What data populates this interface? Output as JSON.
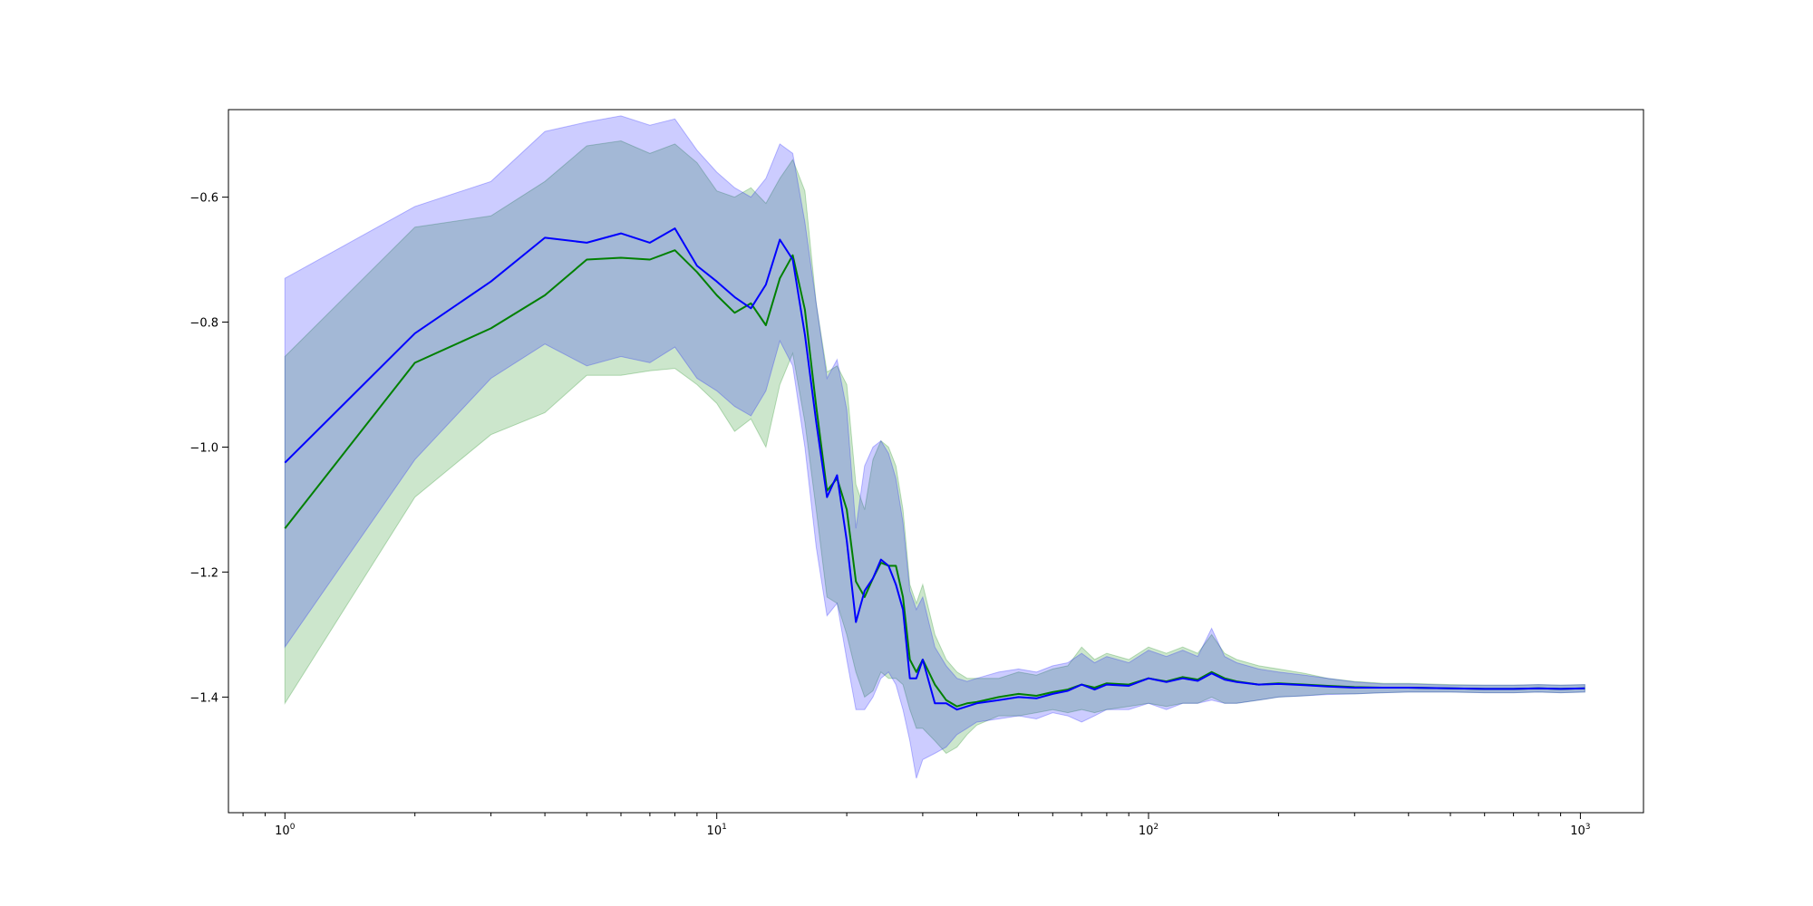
{
  "chart_data": {
    "type": "line",
    "title": "",
    "xlabel": "",
    "ylabel": "",
    "xscale": "log",
    "xlim": [
      0.74,
      1400
    ],
    "ylim": [
      -1.585,
      -0.46
    ],
    "grid": false,
    "legend": "none",
    "x_tick_labels": [
      {
        "value": 1,
        "base": "10",
        "exp": "0"
      },
      {
        "value": 10,
        "base": "10",
        "exp": "1"
      },
      {
        "value": 100,
        "base": "10",
        "exp": "2"
      },
      {
        "value": 1000,
        "base": "10",
        "exp": "3"
      }
    ],
    "y_tick_labels": [
      {
        "value": -0.6,
        "label": "−0.6"
      },
      {
        "value": -0.8,
        "label": "−0.8"
      },
      {
        "value": -1.0,
        "label": "−1.0"
      },
      {
        "value": -1.2,
        "label": "−1.2"
      },
      {
        "value": -1.4,
        "label": "−1.4"
      }
    ],
    "series": [
      {
        "color": "#008000",
        "band_color": "#008000",
        "band_opacity": 0.2,
        "x": [
          1,
          2,
          3,
          4,
          5,
          6,
          7,
          8,
          9,
          10,
          11,
          12,
          13,
          14,
          15,
          16,
          17,
          18,
          19,
          20,
          21,
          22,
          23,
          24,
          25,
          26,
          27,
          28,
          29,
          30,
          32,
          34,
          36,
          38,
          40,
          45,
          50,
          55,
          60,
          65,
          70,
          75,
          80,
          90,
          100,
          110,
          120,
          130,
          140,
          150,
          160,
          180,
          200,
          230,
          260,
          300,
          350,
          400,
          500,
          600,
          700,
          800,
          900,
          1024
        ],
        "y": [
          -1.13,
          -0.865,
          -0.81,
          -0.757,
          -0.7,
          -0.697,
          -0.7,
          -0.685,
          -0.72,
          -0.757,
          -0.785,
          -0.77,
          -0.805,
          -0.73,
          -0.693,
          -0.78,
          -0.935,
          -1.07,
          -1.05,
          -1.1,
          -1.215,
          -1.24,
          -1.21,
          -1.185,
          -1.19,
          -1.19,
          -1.24,
          -1.34,
          -1.36,
          -1.34,
          -1.38,
          -1.405,
          -1.415,
          -1.41,
          -1.408,
          -1.4,
          -1.395,
          -1.398,
          -1.392,
          -1.388,
          -1.38,
          -1.385,
          -1.378,
          -1.38,
          -1.37,
          -1.375,
          -1.368,
          -1.372,
          -1.36,
          -1.37,
          -1.375,
          -1.38,
          -1.378,
          -1.38,
          -1.382,
          -1.384,
          -1.385,
          -1.385,
          -1.386,
          -1.387,
          -1.387,
          -1.386,
          -1.387,
          -1.386
        ],
        "lower": [
          -1.41,
          -1.08,
          -0.98,
          -0.945,
          -0.885,
          -0.885,
          -0.878,
          -0.874,
          -0.9,
          -0.93,
          -0.975,
          -0.955,
          -1.0,
          -0.9,
          -0.85,
          -0.96,
          -1.1,
          -1.24,
          -1.25,
          -1.3,
          -1.36,
          -1.4,
          -1.39,
          -1.36,
          -1.37,
          -1.37,
          -1.38,
          -1.42,
          -1.45,
          -1.45,
          -1.47,
          -1.49,
          -1.48,
          -1.46,
          -1.445,
          -1.43,
          -1.43,
          -1.425,
          -1.42,
          -1.425,
          -1.42,
          -1.425,
          -1.42,
          -1.415,
          -1.41,
          -1.415,
          -1.41,
          -1.41,
          -1.4,
          -1.41,
          -1.41,
          -1.405,
          -1.4,
          -1.398,
          -1.395,
          -1.395,
          -1.393,
          -1.392,
          -1.392,
          -1.393,
          -1.393,
          -1.392,
          -1.393,
          -1.392
        ],
        "upper": [
          -0.855,
          -0.648,
          -0.63,
          -0.575,
          -0.518,
          -0.51,
          -0.53,
          -0.515,
          -0.545,
          -0.59,
          -0.6,
          -0.585,
          -0.61,
          -0.57,
          -0.54,
          -0.59,
          -0.77,
          -0.88,
          -0.87,
          -0.9,
          -1.06,
          -1.1,
          -1.02,
          -0.99,
          -1.0,
          -1.03,
          -1.1,
          -1.22,
          -1.25,
          -1.22,
          -1.3,
          -1.34,
          -1.36,
          -1.37,
          -1.37,
          -1.37,
          -1.36,
          -1.365,
          -1.355,
          -1.35,
          -1.32,
          -1.34,
          -1.33,
          -1.34,
          -1.32,
          -1.33,
          -1.32,
          -1.33,
          -1.3,
          -1.33,
          -1.34,
          -1.35,
          -1.355,
          -1.362,
          -1.37,
          -1.375,
          -1.378,
          -1.378,
          -1.38,
          -1.381,
          -1.381,
          -1.38,
          -1.381,
          -1.38
        ]
      },
      {
        "color": "#0000ff",
        "band_color": "#0000ff",
        "band_opacity": 0.2,
        "x": [
          1,
          2,
          3,
          4,
          5,
          6,
          7,
          8,
          9,
          10,
          11,
          12,
          13,
          14,
          15,
          16,
          17,
          18,
          19,
          20,
          21,
          22,
          23,
          24,
          25,
          26,
          27,
          28,
          29,
          30,
          32,
          34,
          36,
          38,
          40,
          45,
          50,
          55,
          60,
          65,
          70,
          75,
          80,
          90,
          100,
          110,
          120,
          130,
          140,
          150,
          160,
          180,
          200,
          230,
          260,
          300,
          350,
          400,
          500,
          600,
          700,
          800,
          900,
          1024
        ],
        "y": [
          -1.025,
          -0.818,
          -0.735,
          -0.665,
          -0.673,
          -0.658,
          -0.673,
          -0.65,
          -0.71,
          -0.735,
          -0.76,
          -0.778,
          -0.74,
          -0.668,
          -0.7,
          -0.82,
          -0.96,
          -1.08,
          -1.045,
          -1.15,
          -1.28,
          -1.23,
          -1.21,
          -1.18,
          -1.19,
          -1.22,
          -1.26,
          -1.37,
          -1.37,
          -1.34,
          -1.41,
          -1.41,
          -1.42,
          -1.415,
          -1.41,
          -1.405,
          -1.4,
          -1.402,
          -1.395,
          -1.39,
          -1.38,
          -1.388,
          -1.38,
          -1.382,
          -1.37,
          -1.376,
          -1.37,
          -1.374,
          -1.362,
          -1.372,
          -1.376,
          -1.38,
          -1.379,
          -1.381,
          -1.383,
          -1.385,
          -1.385,
          -1.385,
          -1.386,
          -1.387,
          -1.387,
          -1.386,
          -1.387,
          -1.386
        ],
        "lower": [
          -1.32,
          -1.02,
          -0.89,
          -0.835,
          -0.87,
          -0.855,
          -0.865,
          -0.84,
          -0.89,
          -0.91,
          -0.935,
          -0.95,
          -0.91,
          -0.83,
          -0.87,
          -1.0,
          -1.16,
          -1.27,
          -1.25,
          -1.34,
          -1.42,
          -1.42,
          -1.4,
          -1.37,
          -1.36,
          -1.38,
          -1.42,
          -1.47,
          -1.53,
          -1.5,
          -1.49,
          -1.48,
          -1.46,
          -1.45,
          -1.44,
          -1.435,
          -1.43,
          -1.435,
          -1.425,
          -1.43,
          -1.44,
          -1.43,
          -1.42,
          -1.42,
          -1.41,
          -1.42,
          -1.41,
          -1.41,
          -1.405,
          -1.41,
          -1.41,
          -1.405,
          -1.4,
          -1.398,
          -1.396,
          -1.395,
          -1.393,
          -1.392,
          -1.392,
          -1.393,
          -1.393,
          -1.392,
          -1.393,
          -1.392
        ],
        "upper": [
          -0.73,
          -0.615,
          -0.575,
          -0.495,
          -0.48,
          -0.47,
          -0.485,
          -0.475,
          -0.525,
          -0.56,
          -0.585,
          -0.6,
          -0.57,
          -0.515,
          -0.53,
          -0.64,
          -0.77,
          -0.89,
          -0.86,
          -0.94,
          -1.13,
          -1.03,
          -1.0,
          -0.99,
          -1.01,
          -1.05,
          -1.12,
          -1.23,
          -1.26,
          -1.24,
          -1.32,
          -1.35,
          -1.37,
          -1.375,
          -1.37,
          -1.36,
          -1.355,
          -1.36,
          -1.35,
          -1.345,
          -1.33,
          -1.345,
          -1.335,
          -1.345,
          -1.325,
          -1.335,
          -1.325,
          -1.335,
          -1.29,
          -1.335,
          -1.345,
          -1.355,
          -1.36,
          -1.365,
          -1.37,
          -1.376,
          -1.379,
          -1.379,
          -1.381,
          -1.381,
          -1.381,
          -1.38,
          -1.381,
          -1.38
        ]
      }
    ]
  }
}
